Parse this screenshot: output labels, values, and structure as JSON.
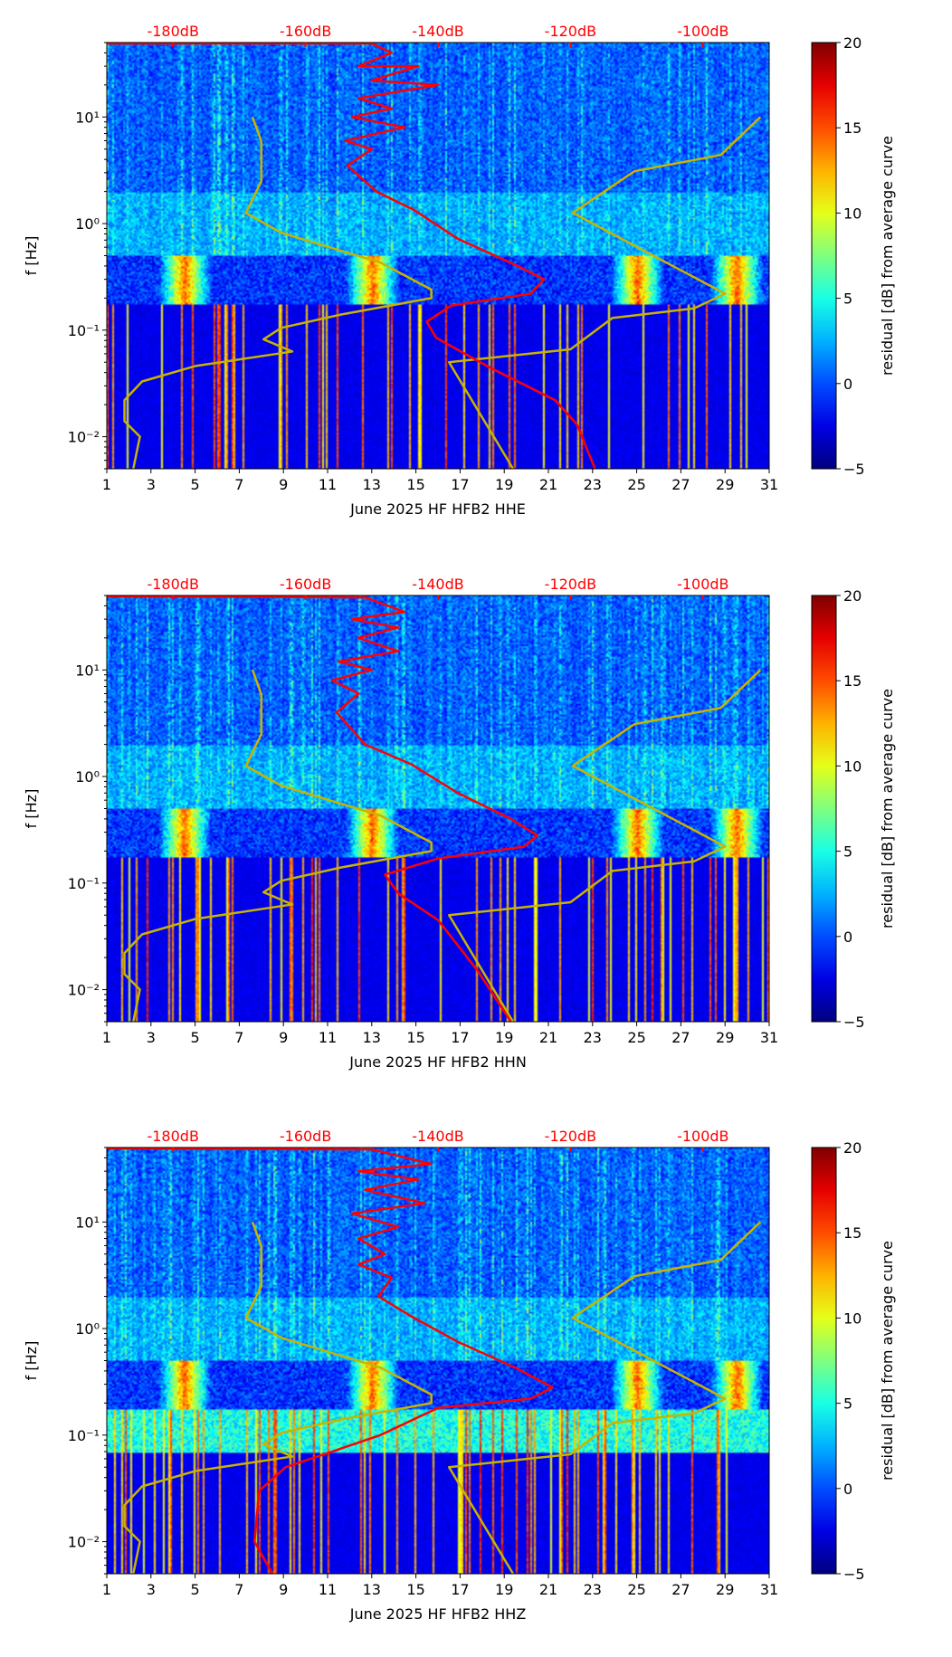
{
  "chart_data": [
    {
      "type": "heatmap",
      "title": "",
      "xlabel": "June 2025 HF HFB2  HHE",
      "ylabel": "f [Hz]",
      "xlim": [
        1,
        31
      ],
      "ylim": [
        0.005,
        50
      ],
      "yscale": "log",
      "xticks": [
        "1",
        "3",
        "5",
        "7",
        "9",
        "11",
        "13",
        "15",
        "17",
        "19",
        "21",
        "23",
        "25",
        "27",
        "29",
        "31"
      ],
      "yticks": [
        {
          "value": 0.01,
          "label": "10⁻²"
        },
        {
          "value": 0.1,
          "label": "10⁻¹"
        },
        {
          "value": 1,
          "label": "10⁰"
        },
        {
          "value": 10,
          "label": "10¹"
        }
      ],
      "top_axis": {
        "labels": [
          "-180dB",
          "-160dB",
          "-140dB",
          "-120dB",
          "-100dB"
        ],
        "values": [
          -180,
          -160,
          -140,
          -120,
          -100
        ],
        "day_at_minus180": 4,
        "days_per_20dB": 6
      },
      "colorbar": {
        "label": "residual [dB] from average curve",
        "range": [
          -5,
          20
        ],
        "ticks": [
          "-5",
          "0",
          "5",
          "10",
          "15",
          "20"
        ]
      },
      "series": [
        {
          "name": "low-noise model (left)",
          "color": "#c8b400",
          "x_days": [
            7.6,
            8.0,
            8.0,
            7.3,
            8.9,
            13.4,
            15.7,
            15.7,
            11.6,
            8.9,
            8.1,
            9.4,
            5.0,
            2.6,
            1.8,
            1.8,
            2.5,
            2.2
          ],
          "freq": [
            10,
            5.9,
            2.5,
            1.26,
            0.82,
            0.43,
            0.24,
            0.2,
            0.14,
            0.105,
            0.082,
            0.063,
            0.046,
            0.033,
            0.022,
            0.014,
            0.01,
            0.005
          ]
        },
        {
          "name": "high-noise model (right)",
          "color": "#c8b400",
          "x_days": [
            30.6,
            28.8,
            24.9,
            22.1,
            29.0,
            27.6,
            23.9,
            22.0,
            16.5,
            19.4
          ],
          "freq": [
            10,
            4.4,
            3.1,
            1.26,
            0.22,
            0.16,
            0.13,
            0.066,
            0.05,
            0.005
          ]
        },
        {
          "name": "average PSD (dB)",
          "color": "#ff0000",
          "db": [
            -190,
            -150,
            -147,
            -152,
            -143,
            -150,
            -140,
            -152,
            -147,
            -153,
            -145,
            -154,
            -150,
            -153.7,
            -149.3,
            -143.7,
            -137,
            -128,
            -124,
            -126,
            -138,
            -141.7,
            -140.3,
            -132.3,
            -122.3,
            -119,
            -116.3
          ],
          "freq": [
            49,
            49,
            40,
            30,
            30,
            22,
            20,
            15,
            12,
            10,
            8,
            6,
            5,
            3.5,
            2,
            1.35,
            0.72,
            0.4,
            0.3,
            0.22,
            0.17,
            0.12,
            0.085,
            0.045,
            0.022,
            0.013,
            0.005
          ]
        }
      ]
    },
    {
      "type": "heatmap",
      "title": "",
      "xlabel": "June 2025 HF HFB2  HHN",
      "ylabel": "f [Hz]",
      "xlim": [
        1,
        31
      ],
      "ylim": [
        0.005,
        50
      ],
      "yscale": "log",
      "xticks": [
        "1",
        "3",
        "5",
        "7",
        "9",
        "11",
        "13",
        "15",
        "17",
        "19",
        "21",
        "23",
        "25",
        "27",
        "29",
        "31"
      ],
      "yticks": [
        {
          "value": 0.01,
          "label": "10⁻²"
        },
        {
          "value": 0.1,
          "label": "10⁻¹"
        },
        {
          "value": 1,
          "label": "10⁰"
        },
        {
          "value": 10,
          "label": "10¹"
        }
      ],
      "top_axis": {
        "labels": [
          "-180dB",
          "-160dB",
          "-140dB",
          "-120dB",
          "-100dB"
        ],
        "values": [
          -180,
          -160,
          -140,
          -120,
          -100
        ],
        "day_at_minus180": 4,
        "days_per_20dB": 6
      },
      "colorbar": {
        "label": "residual [dB] from average curve",
        "range": [
          -5,
          20
        ],
        "ticks": [
          "-5",
          "0",
          "5",
          "10",
          "15",
          "20"
        ]
      },
      "series": [
        {
          "name": "low-noise model (left)",
          "color": "#c8b400",
          "x_days": [
            7.6,
            8.0,
            8.0,
            7.3,
            8.9,
            13.4,
            15.7,
            15.7,
            11.6,
            8.9,
            8.1,
            9.4,
            5.0,
            2.6,
            1.8,
            1.8,
            2.5,
            2.2
          ],
          "freq": [
            10,
            5.9,
            2.5,
            1.26,
            0.82,
            0.43,
            0.24,
            0.2,
            0.14,
            0.105,
            0.082,
            0.063,
            0.046,
            0.033,
            0.022,
            0.014,
            0.01,
            0.005
          ]
        },
        {
          "name": "high-noise model (right)",
          "color": "#c8b400",
          "x_days": [
            30.6,
            28.8,
            24.9,
            22.1,
            29.0,
            27.6,
            23.9,
            22.0,
            16.5,
            19.4
          ],
          "freq": [
            10,
            4.4,
            3.1,
            1.26,
            0.22,
            0.16,
            0.13,
            0.066,
            0.05,
            0.005
          ]
        },
        {
          "name": "average PSD (dB)",
          "color": "#ff0000",
          "db": [
            -190,
            -151,
            -145,
            -153,
            -146,
            -152,
            -146,
            -155,
            -150,
            -156,
            -152,
            -155.3,
            -151,
            -144,
            -137,
            -129,
            -125,
            -127,
            -140,
            -148,
            -146,
            -140,
            -134,
            -129
          ],
          "freq": [
            49,
            48,
            35,
            30,
            25,
            20,
            15,
            12,
            10,
            8,
            6,
            4,
            2,
            1.3,
            0.7,
            0.4,
            0.28,
            0.22,
            0.17,
            0.12,
            0.08,
            0.045,
            0.015,
            0.005
          ]
        }
      ]
    },
    {
      "type": "heatmap",
      "title": "",
      "xlabel": "June 2025 HF HFB2  HHZ",
      "ylabel": "f [Hz]",
      "xlim": [
        1,
        31
      ],
      "ylim": [
        0.005,
        50
      ],
      "yscale": "log",
      "xticks": [
        "1",
        "3",
        "5",
        "7",
        "9",
        "11",
        "13",
        "15",
        "17",
        "19",
        "21",
        "23",
        "25",
        "27",
        "29",
        "31"
      ],
      "yticks": [
        {
          "value": 0.01,
          "label": "10⁻²"
        },
        {
          "value": 0.1,
          "label": "10⁻¹"
        },
        {
          "value": 1,
          "label": "10⁰"
        },
        {
          "value": 10,
          "label": "10¹"
        }
      ],
      "top_axis": {
        "labels": [
          "-180dB",
          "-160dB",
          "-140dB",
          "-120dB",
          "-100dB"
        ],
        "values": [
          -180,
          -160,
          -140,
          -120,
          -100
        ],
        "day_at_minus180": 4,
        "days_per_20dB": 6
      },
      "colorbar": {
        "label": "residual [dB] from average curve",
        "range": [
          -5,
          20
        ],
        "ticks": [
          "-5",
          "0",
          "5",
          "10",
          "15",
          "20"
        ]
      },
      "series": [
        {
          "name": "low-noise model (left)",
          "color": "#c8b400",
          "x_days": [
            7.6,
            8.0,
            8.0,
            7.3,
            8.9,
            13.4,
            15.7,
            15.7,
            11.6,
            8.9,
            8.1,
            9.4,
            5.0,
            2.6,
            1.8,
            1.8,
            2.5,
            2.2
          ],
          "freq": [
            10,
            5.9,
            2.5,
            1.26,
            0.82,
            0.43,
            0.24,
            0.2,
            0.14,
            0.105,
            0.082,
            0.063,
            0.046,
            0.033,
            0.022,
            0.014,
            0.01,
            0.005
          ]
        },
        {
          "name": "high-noise model (right)",
          "color": "#c8b400",
          "x_days": [
            30.6,
            28.8,
            24.9,
            22.1,
            29.0,
            27.6,
            23.9,
            22.0,
            16.5,
            19.4
          ],
          "freq": [
            10,
            4.4,
            3.1,
            1.26,
            0.22,
            0.16,
            0.13,
            0.066,
            0.05,
            0.005
          ]
        },
        {
          "name": "average PSD (dB)",
          "color": "#ff0000",
          "db": [
            -190,
            -150,
            -141,
            -152,
            -143,
            -151,
            -142,
            -153,
            -146,
            -152,
            -148,
            -152,
            -147,
            -149,
            -144,
            -137,
            -128,
            -122.7,
            -126,
            -140,
            -148.7,
            -156,
            -163,
            -167,
            -167.7,
            -165
          ],
          "freq": [
            49,
            48,
            35,
            30,
            25,
            20,
            15,
            12,
            9,
            7,
            5,
            4,
            3,
            2,
            1.3,
            0.75,
            0.42,
            0.28,
            0.22,
            0.18,
            0.1,
            0.07,
            0.05,
            0.03,
            0.01,
            0.005
          ]
        }
      ]
    }
  ]
}
